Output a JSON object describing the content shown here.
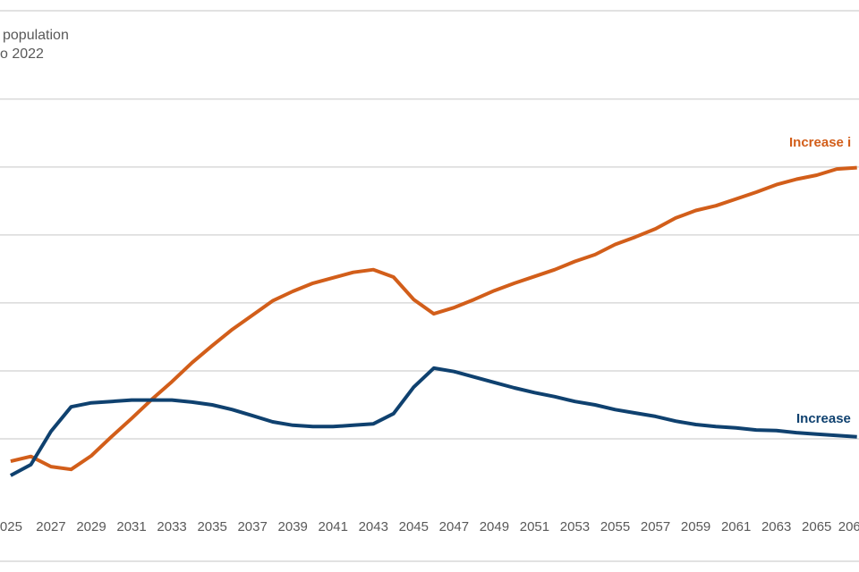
{
  "chart_data": {
    "type": "line",
    "title_lines": [
      "population",
      "o 2022"
    ],
    "x": [
      2025,
      2026,
      2027,
      2028,
      2029,
      2030,
      2031,
      2032,
      2033,
      2034,
      2035,
      2036,
      2037,
      2038,
      2039,
      2040,
      2041,
      2042,
      2043,
      2044,
      2045,
      2046,
      2047,
      2048,
      2049,
      2050,
      2051,
      2052,
      2053,
      2054,
      2055,
      2056,
      2057,
      2058,
      2059,
      2060,
      2061,
      2062,
      2063,
      2064,
      2065,
      2066,
      2067
    ],
    "series": [
      {
        "name": "Increase i",
        "color": "#d25e1a",
        "values": [
          0.67,
          0.74,
          0.59,
          0.55,
          0.75,
          1.03,
          1.3,
          1.58,
          1.84,
          2.12,
          2.37,
          2.61,
          2.82,
          3.03,
          3.17,
          3.29,
          3.37,
          3.45,
          3.49,
          3.38,
          3.05,
          2.84,
          2.93,
          3.05,
          3.18,
          3.29,
          3.39,
          3.49,
          3.61,
          3.71,
          3.86,
          3.97,
          4.09,
          4.25,
          4.36,
          4.43,
          4.53,
          4.63,
          4.74,
          4.82,
          4.88,
          4.97,
          4.99
        ]
      },
      {
        "name": "Increase",
        "color": "#0f416f",
        "values": [
          0.46,
          0.62,
          1.11,
          1.47,
          1.53,
          1.55,
          1.57,
          1.57,
          1.57,
          1.54,
          1.5,
          1.43,
          1.34,
          1.25,
          1.2,
          1.18,
          1.18,
          1.2,
          1.22,
          1.37,
          1.76,
          2.04,
          1.99,
          1.91,
          1.83,
          1.75,
          1.68,
          1.62,
          1.55,
          1.5,
          1.43,
          1.38,
          1.33,
          1.26,
          1.21,
          1.18,
          1.16,
          1.13,
          1.12,
          1.09,
          1.07,
          1.05,
          1.03
        ]
      }
    ],
    "xlim": [
      2024.47,
      2067.1
    ],
    "xticks": [
      {
        "value": 2025,
        "label": "025"
      },
      2027,
      2029,
      2031,
      2033,
      2035,
      2037,
      2039,
      2041,
      2043,
      2045,
      2047,
      2049,
      2051,
      2053,
      2055,
      2057,
      2059,
      2061,
      2063,
      2065,
      {
        "value": 2067,
        "label": "206"
      }
    ],
    "ylim": [
      0,
      7.3
    ],
    "gridlines": [
      1,
      2,
      3,
      4,
      5,
      6
    ],
    "grid": true
  }
}
